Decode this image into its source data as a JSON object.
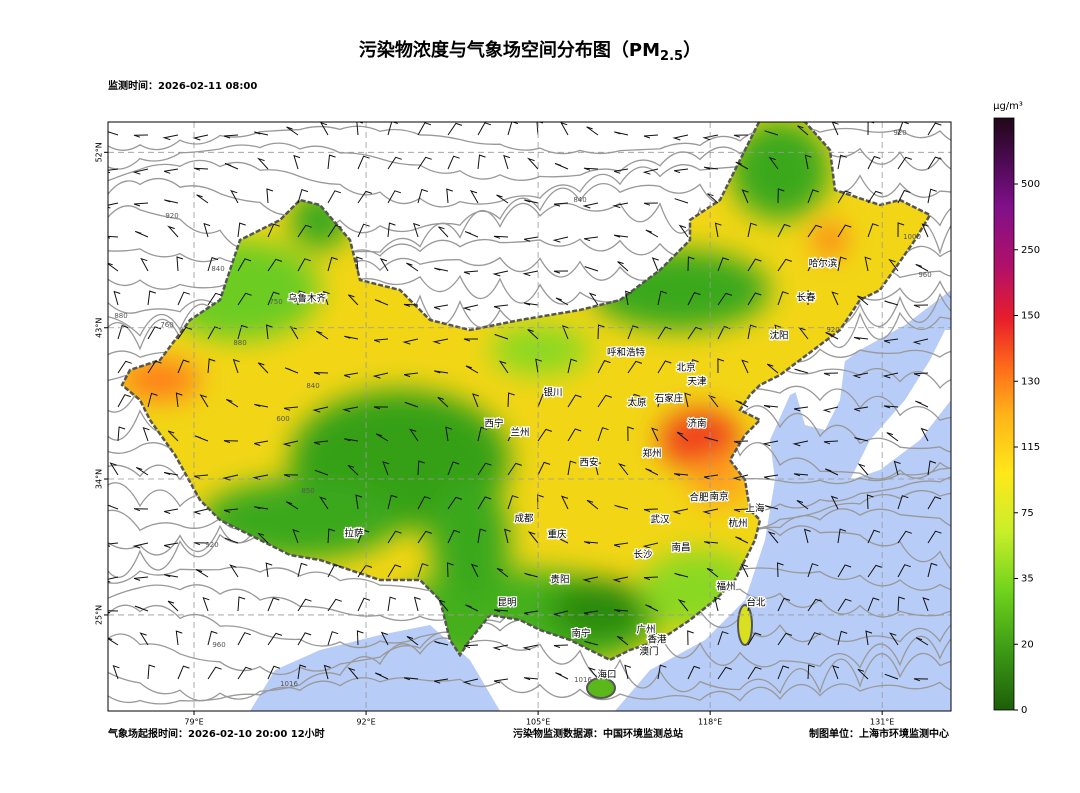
{
  "header": {
    "title": "污染物浓度与气象场空间分布图（PM",
    "title_subscript": "2.5",
    "title_end": "）",
    "monitor_time": "监测时间：2026-02-11 08:00"
  },
  "map": {
    "xlim": [
      72.5,
      136.2
    ],
    "ylim": [
      18.2,
      53.4
    ],
    "lon_ticks": [
      {
        "value": 79,
        "label": "79°E"
      },
      {
        "value": 92,
        "label": "92°E"
      },
      {
        "value": 105,
        "label": "105°E"
      },
      {
        "value": 118,
        "label": "118°E"
      },
      {
        "value": 131,
        "label": "131°E"
      }
    ],
    "lat_ticks": [
      {
        "value": 52,
        "label": "52°N"
      },
      {
        "value": 43,
        "label": "43°N"
      },
      {
        "value": 34,
        "label": "34°N"
      },
      {
        "value": 25,
        "label": "25°N"
      }
    ],
    "cities": [
      "乌鲁木齐",
      "哈尔滨",
      "长春",
      "沈阳",
      "呼和浩特",
      "北京",
      "天津",
      "银川",
      "太原",
      "石家庄",
      "西宁",
      "兰州",
      "济南",
      "郑州",
      "西安",
      "合肥",
      "南京",
      "上海",
      "成都",
      "武汉",
      "杭州",
      "拉萨",
      "重庆",
      "南昌",
      "长沙",
      "贵阳",
      "福州",
      "台北",
      "昆明",
      "南宁",
      "广州",
      "香港",
      "澳门",
      "海口"
    ],
    "contour_labels": [
      "880",
      "920",
      "840",
      "760",
      "880",
      "840",
      "600",
      "750",
      "850",
      "920",
      "960",
      "880",
      "920",
      "840",
      "960",
      "1000",
      "920",
      "1016",
      "1016"
    ]
  },
  "colorbar": {
    "unit": "μg/m³",
    "ticks": [
      0,
      20,
      35,
      75,
      115,
      130,
      150,
      250,
      500
    ]
  },
  "footer": {
    "forecast": "气象场起报时间：2026-02-10 20:00 12小时",
    "source": "污染物监测数据源：中国环境监测总站",
    "producer": "制图单位：上海市环境监测中心"
  }
}
